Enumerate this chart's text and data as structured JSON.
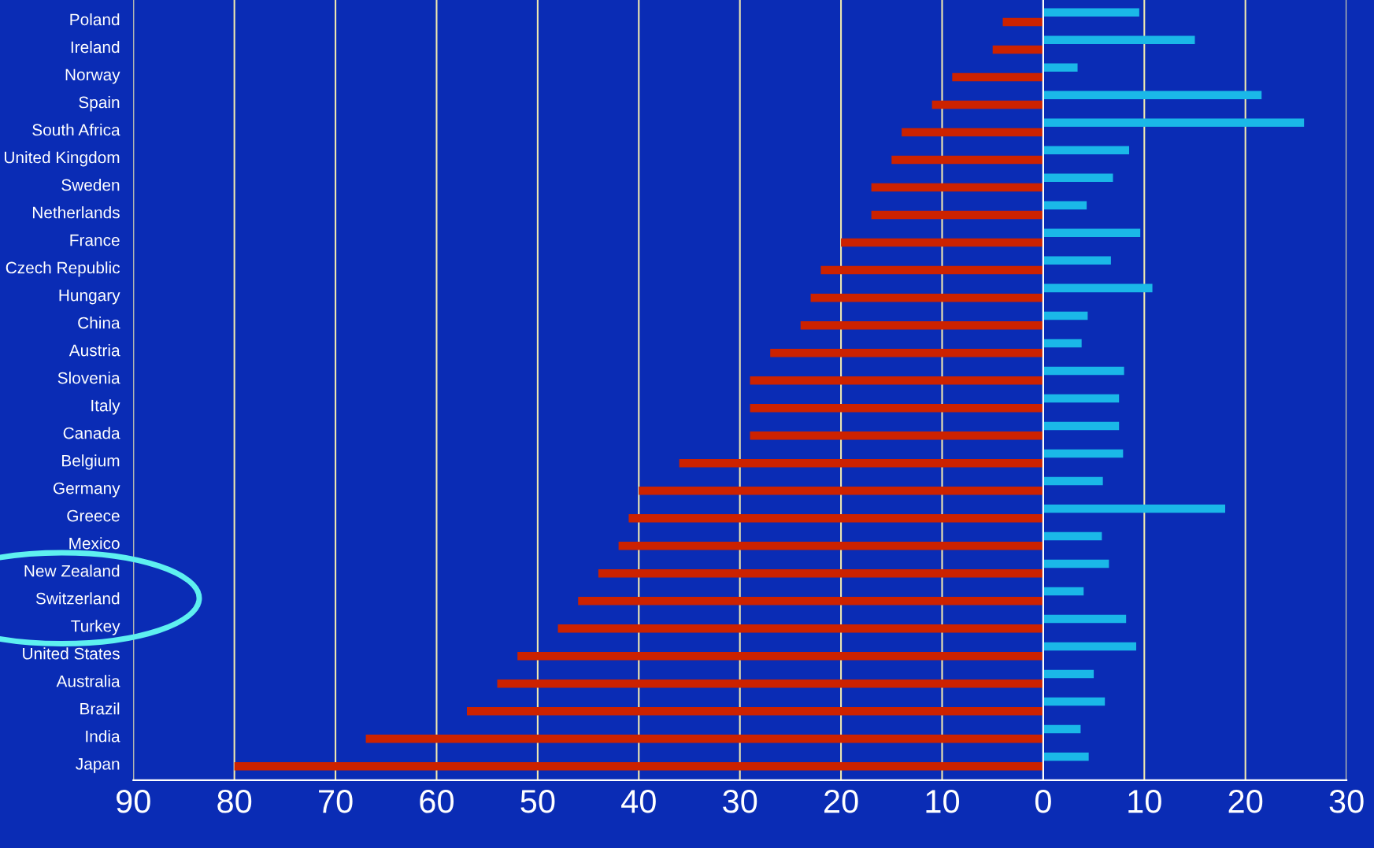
{
  "chart_data": {
    "type": "bar",
    "orientation": "horizontal",
    "categories": [
      "Poland",
      "Ireland",
      "Norway",
      "Spain",
      "South Africa",
      "United Kingdom",
      "Sweden",
      "Netherlands",
      "France",
      "Czech Republic",
      "Hungary",
      "China",
      "Austria",
      "Slovenia",
      "Italy",
      "Canada",
      "Belgium",
      "Germany",
      "Greece",
      "Mexico",
      "New Zealand",
      "Switzerland",
      "Turkey",
      "United States",
      "Australia",
      "Brazil",
      "India",
      "Japan"
    ],
    "series": [
      {
        "color": "#1ab8e8",
        "values": [
          9.5,
          15,
          3.4,
          21.6,
          25.8,
          8.5,
          6.9,
          4.3,
          9.6,
          6.7,
          10.8,
          4.4,
          3.8,
          8,
          7.5,
          7.5,
          7.9,
          5.9,
          18,
          5.8,
          6.5,
          4,
          8.2,
          9.2,
          5,
          6.1,
          3.7,
          4.5
        ]
      },
      {
        "color": "#cc2200",
        "values": [
          -4,
          -5,
          -9,
          -11,
          -14,
          -15,
          -17,
          -17,
          -20,
          -22,
          -23,
          -24,
          -27,
          -29,
          -29,
          -29,
          -36,
          -40,
          -41,
          -42,
          -44,
          -46,
          -48,
          -52,
          -54,
          -57,
          -67,
          -80
        ]
      }
    ],
    "xlim": [
      -90,
      30
    ],
    "xticks": [
      {
        "value": -90,
        "label": "90"
      },
      {
        "value": -80,
        "label": "80"
      },
      {
        "value": -70,
        "label": "70"
      },
      {
        "value": -60,
        "label": "60"
      },
      {
        "value": -50,
        "label": "50"
      },
      {
        "value": -40,
        "label": "40"
      },
      {
        "value": -30,
        "label": "30"
      },
      {
        "value": -20,
        "label": "20"
      },
      {
        "value": -10,
        "label": "10"
      },
      0,
      10,
      20,
      30
    ],
    "grid": "x"
  }
}
